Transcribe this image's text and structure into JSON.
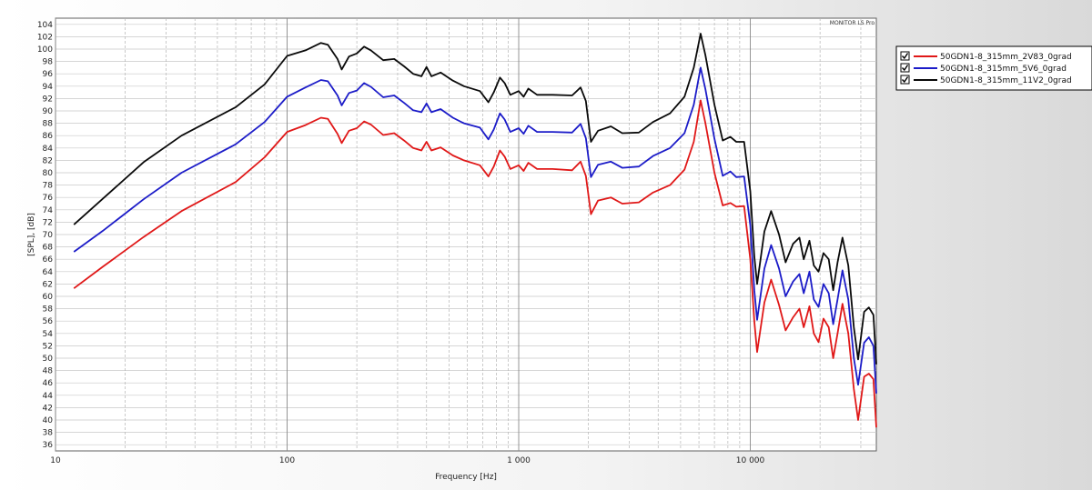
{
  "chart_data": {
    "type": "line",
    "title": "",
    "xlabel": "Frequency [Hz]",
    "ylabel": "[SPL], [dB]",
    "xscale": "log",
    "xlim": [
      10,
      35000
    ],
    "ylim": [
      35,
      105
    ],
    "grid": true,
    "legend_position": "top-right, outside plot",
    "watermark": "MONITOR LS Pro",
    "x_ticks": [
      {
        "value": 10,
        "label": "10"
      },
      {
        "value": 100,
        "label": "100"
      },
      {
        "value": 1000,
        "label": "1 000"
      },
      {
        "value": 10000,
        "label": "10 000"
      }
    ],
    "y_ticks": [
      36,
      38,
      40,
      42,
      44,
      46,
      48,
      50,
      52,
      54,
      56,
      58,
      60,
      62,
      64,
      66,
      68,
      70,
      72,
      74,
      76,
      78,
      80,
      82,
      84,
      86,
      88,
      90,
      92,
      94,
      96,
      98,
      100,
      102,
      104
    ],
    "series": [
      {
        "name": "50GDN1-8_315mm_2V83_0grad",
        "color": "#e01818",
        "checked": true,
        "points": [
          [
            12,
            61.3
          ],
          [
            16,
            64.8
          ],
          [
            24,
            69.6
          ],
          [
            35,
            73.8
          ],
          [
            60,
            78.5
          ],
          [
            80,
            82.5
          ],
          [
            100,
            86.6
          ],
          [
            120,
            87.7
          ],
          [
            140,
            88.9
          ],
          [
            150,
            88.7
          ],
          [
            165,
            86.3
          ],
          [
            172,
            84.8
          ],
          [
            185,
            86.8
          ],
          [
            200,
            87.2
          ],
          [
            215,
            88.3
          ],
          [
            230,
            87.8
          ],
          [
            260,
            86.1
          ],
          [
            290,
            86.4
          ],
          [
            320,
            85.2
          ],
          [
            350,
            84.0
          ],
          [
            380,
            83.6
          ],
          [
            400,
            85.0
          ],
          [
            420,
            83.6
          ],
          [
            460,
            84.1
          ],
          [
            520,
            82.8
          ],
          [
            580,
            82.0
          ],
          [
            680,
            81.2
          ],
          [
            740,
            79.4
          ],
          [
            780,
            81.0
          ],
          [
            830,
            83.6
          ],
          [
            870,
            82.6
          ],
          [
            920,
            80.6
          ],
          [
            1000,
            81.2
          ],
          [
            1050,
            80.3
          ],
          [
            1100,
            81.6
          ],
          [
            1200,
            80.6
          ],
          [
            1400,
            80.6
          ],
          [
            1700,
            80.4
          ],
          [
            1850,
            81.8
          ],
          [
            1950,
            79.5
          ],
          [
            2050,
            73.3
          ],
          [
            2200,
            75.5
          ],
          [
            2500,
            76.0
          ],
          [
            2800,
            75.0
          ],
          [
            3300,
            75.2
          ],
          [
            3800,
            76.8
          ],
          [
            4500,
            78.0
          ],
          [
            5200,
            80.5
          ],
          [
            5700,
            85.0
          ],
          [
            6100,
            91.7
          ],
          [
            6400,
            88.0
          ],
          [
            7000,
            80.0
          ],
          [
            7600,
            74.7
          ],
          [
            8200,
            75.1
          ],
          [
            8700,
            74.5
          ],
          [
            9400,
            74.6
          ],
          [
            10000,
            66.0
          ],
          [
            10400,
            56.0
          ],
          [
            10700,
            51.0
          ],
          [
            11500,
            59.0
          ],
          [
            12300,
            62.7
          ],
          [
            13300,
            58.6
          ],
          [
            14200,
            54.5
          ],
          [
            15300,
            56.6
          ],
          [
            16300,
            58.0
          ],
          [
            17000,
            55.0
          ],
          [
            18000,
            58.4
          ],
          [
            18800,
            54.0
          ],
          [
            19700,
            52.6
          ],
          [
            20700,
            56.4
          ],
          [
            21800,
            55.0
          ],
          [
            22800,
            50.0
          ],
          [
            23800,
            54.0
          ],
          [
            25000,
            58.8
          ],
          [
            26500,
            54.0
          ],
          [
            28000,
            45.0
          ],
          [
            29200,
            40.0
          ],
          [
            31000,
            47.0
          ],
          [
            32500,
            47.5
          ],
          [
            34000,
            46.6
          ],
          [
            35000,
            38.8
          ]
        ]
      },
      {
        "name": "50GDN1-8_315mm_5V6_0grad",
        "color": "#1c1cc8",
        "checked": true,
        "points": [
          [
            12,
            67.2
          ],
          [
            16,
            70.6
          ],
          [
            24,
            75.7
          ],
          [
            35,
            80.0
          ],
          [
            60,
            84.6
          ],
          [
            80,
            88.2
          ],
          [
            100,
            92.3
          ],
          [
            120,
            93.8
          ],
          [
            140,
            95.0
          ],
          [
            150,
            94.8
          ],
          [
            165,
            92.5
          ],
          [
            172,
            90.9
          ],
          [
            185,
            92.9
          ],
          [
            200,
            93.3
          ],
          [
            215,
            94.5
          ],
          [
            230,
            93.9
          ],
          [
            260,
            92.2
          ],
          [
            290,
            92.5
          ],
          [
            320,
            91.3
          ],
          [
            350,
            90.1
          ],
          [
            380,
            89.8
          ],
          [
            400,
            91.2
          ],
          [
            420,
            89.8
          ],
          [
            460,
            90.3
          ],
          [
            520,
            88.9
          ],
          [
            580,
            88.0
          ],
          [
            680,
            87.3
          ],
          [
            740,
            85.4
          ],
          [
            780,
            87.0
          ],
          [
            830,
            89.6
          ],
          [
            870,
            88.6
          ],
          [
            920,
            86.6
          ],
          [
            1000,
            87.2
          ],
          [
            1050,
            86.3
          ],
          [
            1100,
            87.6
          ],
          [
            1200,
            86.6
          ],
          [
            1400,
            86.6
          ],
          [
            1700,
            86.5
          ],
          [
            1850,
            87.9
          ],
          [
            1950,
            85.6
          ],
          [
            2050,
            79.3
          ],
          [
            2200,
            81.3
          ],
          [
            2500,
            81.8
          ],
          [
            2800,
            80.8
          ],
          [
            3300,
            81.0
          ],
          [
            3800,
            82.7
          ],
          [
            4500,
            84.0
          ],
          [
            5200,
            86.4
          ],
          [
            5700,
            91.0
          ],
          [
            6100,
            97.0
          ],
          [
            6400,
            93.5
          ],
          [
            7000,
            85.5
          ],
          [
            7600,
            79.5
          ],
          [
            8200,
            80.2
          ],
          [
            8700,
            79.3
          ],
          [
            9400,
            79.4
          ],
          [
            10000,
            71.5
          ],
          [
            10400,
            61.0
          ],
          [
            10700,
            56.2
          ],
          [
            11500,
            64.5
          ],
          [
            12300,
            68.3
          ],
          [
            13300,
            64.5
          ],
          [
            14200,
            60.0
          ],
          [
            15300,
            62.4
          ],
          [
            16300,
            63.6
          ],
          [
            17000,
            60.5
          ],
          [
            18000,
            64.0
          ],
          [
            18800,
            59.5
          ],
          [
            19700,
            58.3
          ],
          [
            20700,
            62.0
          ],
          [
            21800,
            60.5
          ],
          [
            22800,
            55.5
          ],
          [
            23800,
            59.5
          ],
          [
            25000,
            64.2
          ],
          [
            26500,
            59.5
          ],
          [
            28000,
            50.0
          ],
          [
            29200,
            45.7
          ],
          [
            31000,
            52.5
          ],
          [
            32500,
            53.4
          ],
          [
            34000,
            52.0
          ],
          [
            35000,
            44.3
          ]
        ]
      },
      {
        "name": "50GDN1-8_315mm_11V2_0grad",
        "color": "#0a0a0a",
        "checked": true,
        "points": [
          [
            12,
            71.6
          ],
          [
            16,
            75.8
          ],
          [
            24,
            81.7
          ],
          [
            35,
            86.0
          ],
          [
            60,
            90.6
          ],
          [
            80,
            94.3
          ],
          [
            100,
            98.9
          ],
          [
            120,
            99.8
          ],
          [
            140,
            101.0
          ],
          [
            150,
            100.7
          ],
          [
            165,
            98.4
          ],
          [
            172,
            96.7
          ],
          [
            185,
            98.8
          ],
          [
            200,
            99.3
          ],
          [
            215,
            100.4
          ],
          [
            230,
            99.8
          ],
          [
            260,
            98.2
          ],
          [
            290,
            98.4
          ],
          [
            320,
            97.2
          ],
          [
            350,
            96.0
          ],
          [
            380,
            95.6
          ],
          [
            400,
            97.1
          ],
          [
            420,
            95.6
          ],
          [
            460,
            96.2
          ],
          [
            520,
            94.9
          ],
          [
            580,
            94.0
          ],
          [
            680,
            93.2
          ],
          [
            740,
            91.4
          ],
          [
            780,
            93.0
          ],
          [
            830,
            95.4
          ],
          [
            870,
            94.5
          ],
          [
            920,
            92.6
          ],
          [
            1000,
            93.2
          ],
          [
            1050,
            92.3
          ],
          [
            1100,
            93.6
          ],
          [
            1200,
            92.6
          ],
          [
            1400,
            92.6
          ],
          [
            1700,
            92.5
          ],
          [
            1850,
            93.8
          ],
          [
            1950,
            91.6
          ],
          [
            2050,
            85.0
          ],
          [
            2200,
            86.8
          ],
          [
            2500,
            87.5
          ],
          [
            2800,
            86.4
          ],
          [
            3300,
            86.5
          ],
          [
            3800,
            88.2
          ],
          [
            4500,
            89.6
          ],
          [
            5200,
            92.3
          ],
          [
            5700,
            97.0
          ],
          [
            6100,
            102.5
          ],
          [
            6400,
            99.0
          ],
          [
            7000,
            91.0
          ],
          [
            7600,
            85.2
          ],
          [
            8200,
            85.8
          ],
          [
            8700,
            85.0
          ],
          [
            9400,
            85.0
          ],
          [
            10000,
            77.0
          ],
          [
            10400,
            66.5
          ],
          [
            10700,
            62.0
          ],
          [
            11500,
            70.5
          ],
          [
            12300,
            73.8
          ],
          [
            13300,
            70.0
          ],
          [
            14200,
            65.5
          ],
          [
            15300,
            68.5
          ],
          [
            16300,
            69.5
          ],
          [
            17000,
            66.0
          ],
          [
            18000,
            69.0
          ],
          [
            18800,
            65.0
          ],
          [
            19700,
            64.0
          ],
          [
            20700,
            67.0
          ],
          [
            21800,
            66.0
          ],
          [
            22800,
            61.0
          ],
          [
            23800,
            65.5
          ],
          [
            25000,
            69.5
          ],
          [
            26500,
            65.0
          ],
          [
            28000,
            55.0
          ],
          [
            29200,
            49.8
          ],
          [
            31000,
            57.5
          ],
          [
            32500,
            58.2
          ],
          [
            34000,
            57.0
          ],
          [
            35000,
            49.0
          ]
        ]
      }
    ]
  }
}
